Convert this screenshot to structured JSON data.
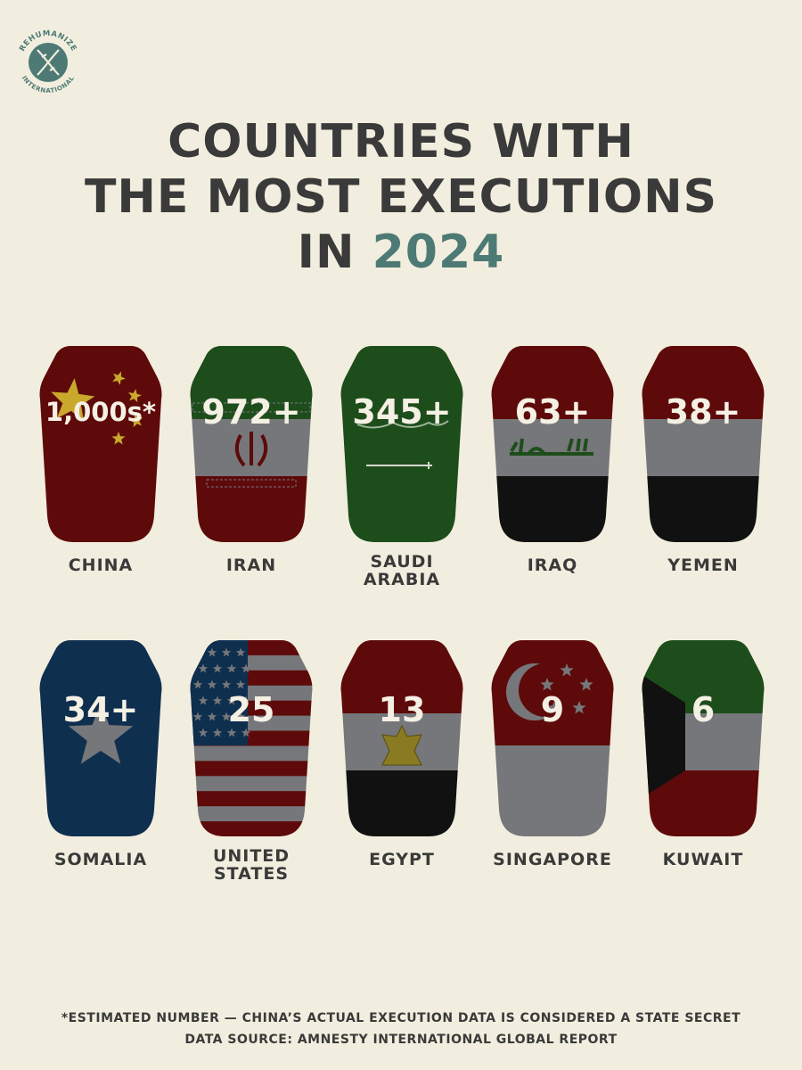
{
  "logo": {
    "top_text": "REHUMANIZE",
    "bottom_text": "INTERNATIONAL",
    "icon": "dna-helix-icon"
  },
  "title": {
    "line1": "COUNTRIES WITH",
    "line2": "THE MOST EXECUTIONS",
    "line3_prefix": "IN",
    "year": "2024"
  },
  "colors": {
    "background": "#f2eedf",
    "text": "#3a3a3a",
    "accent": "#4d7a74",
    "red": "#5e0a0a",
    "green": "#1e4d1c",
    "gray": "#76777a",
    "black": "#111111",
    "blue": "#0f2f4f"
  },
  "chart_data": {
    "type": "bar",
    "categories": [
      "CHINA",
      "IRAN",
      "SAUDI ARABIA",
      "IRAQ",
      "YEMEN",
      "SOMALIA",
      "UNITED STATES",
      "EGYPT",
      "SINGAPORE",
      "KUWAIT"
    ],
    "value_labels": [
      "1,000s*",
      "972+",
      "345+",
      "63+",
      "38+",
      "34+",
      "25",
      "13",
      "9",
      "6"
    ],
    "values": [
      1000,
      972,
      345,
      63,
      38,
      34,
      25,
      13,
      9,
      6
    ]
  },
  "items": [
    {
      "country": "CHINA",
      "label_lines": [
        "CHINA"
      ],
      "value": "1,000s*",
      "flag": "china-flag-icon"
    },
    {
      "country": "IRAN",
      "label_lines": [
        "IRAN"
      ],
      "value": "972+",
      "flag": "iran-flag-icon"
    },
    {
      "country": "SAUDI ARABIA",
      "label_lines": [
        "SAUDI",
        "ARABIA"
      ],
      "value": "345+",
      "flag": "saudi-arabia-flag-icon"
    },
    {
      "country": "IRAQ",
      "label_lines": [
        "IRAQ"
      ],
      "value": "63+",
      "flag": "iraq-flag-icon"
    },
    {
      "country": "YEMEN",
      "label_lines": [
        "YEMEN"
      ],
      "value": "38+",
      "flag": "yemen-flag-icon"
    },
    {
      "country": "SOMALIA",
      "label_lines": [
        "SOMALIA"
      ],
      "value": "34+",
      "flag": "somalia-flag-icon"
    },
    {
      "country": "UNITED STATES",
      "label_lines": [
        "UNITED",
        "STATES"
      ],
      "value": "25",
      "flag": "united-states-flag-icon"
    },
    {
      "country": "EGYPT",
      "label_lines": [
        "EGYPT"
      ],
      "value": "13",
      "flag": "egypt-flag-icon"
    },
    {
      "country": "SINGAPORE",
      "label_lines": [
        "SINGAPORE"
      ],
      "value": "9",
      "flag": "singapore-flag-icon"
    },
    {
      "country": "KUWAIT",
      "label_lines": [
        "KUWAIT"
      ],
      "value": "6",
      "flag": "kuwait-flag-icon"
    }
  ],
  "footnote": {
    "line1": "*ESTIMATED NUMBER — CHINA’S ACTUAL EXECUTION DATA IS CONSIDERED A STATE SECRET",
    "line2": "DATA SOURCE: AMNESTY INTERNATIONAL GLOBAL REPORT"
  }
}
